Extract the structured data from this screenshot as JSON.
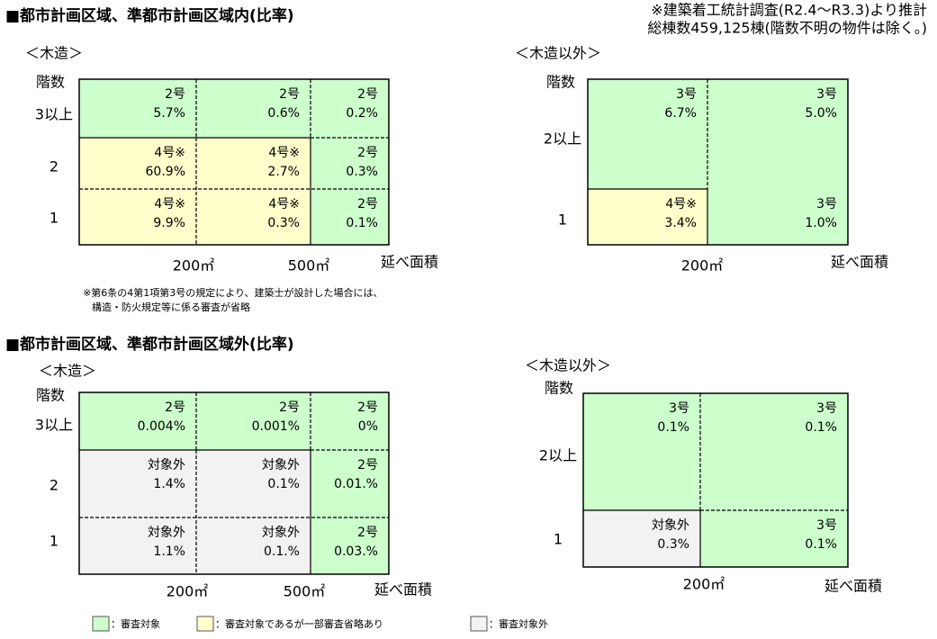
{
  "header": {
    "note": [
      "※建築着工統計調査(R2.4～R3.3)より推計",
      "総棟数459,125棟(階数不明の物件は除く。)"
    ]
  },
  "sections": [
    {
      "title": "■都市計画区域、準都市計画区域内(比率)",
      "panels": [
        {
          "label": "＜木造＞",
          "y_axis_label": "階数",
          "row_labels": [
            "3以上",
            "2",
            "1"
          ],
          "x_labels": [
            "200㎡",
            "500㎡"
          ],
          "x_axis_label": "延べ面積",
          "cells": [
            {
              "code": "2号",
              "ratio": "5.7%",
              "color": "#ccffcc"
            },
            {
              "code": "2号",
              "ratio": "0.6%",
              "color": "#ccffcc"
            },
            {
              "code": "2号",
              "ratio": "0.2%",
              "color": "#ccffcc"
            },
            {
              "code": "4号※",
              "ratio": "60.9%",
              "color": "#ffffcc"
            },
            {
              "code": "4号※",
              "ratio": "2.7%",
              "color": "#ffffcc"
            },
            {
              "code": "2号",
              "ratio": "0.3%",
              "color": "#ccffcc"
            },
            {
              "code": "4号※",
              "ratio": "9.9%",
              "color": "#ffffcc"
            },
            {
              "code": "4号※",
              "ratio": "0.3%",
              "color": "#ffffcc"
            },
            {
              "code": "2号",
              "ratio": "0.1%",
              "color": "#ccffcc"
            }
          ]
        },
        {
          "label": "＜木造以外＞",
          "y_axis_label": "階数",
          "row_labels": [
            "2以上",
            "1"
          ],
          "x_labels": [
            "200㎡"
          ],
          "x_axis_label": "延べ面積",
          "cells": [
            {
              "code": "3号",
              "ratio": "6.7%",
              "color": "#ccffcc"
            },
            {
              "code": "3号",
              "ratio": "5.0%",
              "color": "#ccffcc"
            },
            {
              "code": "4号※",
              "ratio": "3.4%",
              "color": "#ffffcc"
            },
            {
              "code": "3号",
              "ratio": "1.0%",
              "color": "#ccffcc"
            }
          ]
        }
      ],
      "footnote": [
        "※第6条の4第1項第3号の規定により、建築士が設計した場合には、",
        "構造・防火規定等に係る審査が省略"
      ]
    },
    {
      "title": "■都市計画区域、準都市計画区域外(比率)",
      "panels": [
        {
          "label": "＜木造＞",
          "y_axis_label": "階数",
          "row_labels": [
            "3以上",
            "2",
            "1"
          ],
          "x_labels": [
            "200㎡",
            "500㎡"
          ],
          "x_axis_label": "延べ面積",
          "cells": [
            {
              "code": "2号",
              "ratio": "0.004%",
              "color": "#ccffcc"
            },
            {
              "code": "2号",
              "ratio": "0.001%",
              "color": "#ccffcc"
            },
            {
              "code": "2号",
              "ratio": "0%",
              "color": "#ccffcc"
            },
            {
              "code": "対象外",
              "ratio": "1.4%",
              "color": "#f2f2f2"
            },
            {
              "code": "対象外",
              "ratio": "0.1%",
              "color": "#f2f2f2"
            },
            {
              "code": "2号",
              "ratio": "0.01.%",
              "color": "#ccffcc"
            },
            {
              "code": "対象外",
              "ratio": "1.1%",
              "color": "#f2f2f2"
            },
            {
              "code": "対象外",
              "ratio": "0.1.%",
              "color": "#f2f2f2"
            },
            {
              "code": "2号",
              "ratio": "0.03.%",
              "color": "#ccffcc"
            }
          ]
        },
        {
          "label": "＜木造以外＞",
          "y_axis_label": "階数",
          "row_labels": [
            "2以上",
            "1"
          ],
          "x_labels": [
            "200㎡"
          ],
          "x_axis_label": "延べ面積",
          "cells": [
            {
              "code": "3号",
              "ratio": "0.1%",
              "color": "#ccffcc"
            },
            {
              "code": "3号",
              "ratio": "0.1%",
              "color": "#ccffcc"
            },
            {
              "code": "対象外",
              "ratio": "0.3%",
              "color": "#f2f2f2"
            },
            {
              "code": "3号",
              "ratio": "0.1%",
              "color": "#ccffcc"
            }
          ]
        }
      ]
    }
  ],
  "legend": [
    {
      "color": "#ccffcc",
      "label": "：審査対象"
    },
    {
      "color": "#ffffcc",
      "label": "：審査対象であるが一部審査省略あり"
    },
    {
      "color": "#f2f2f2",
      "label": "：審査対象外"
    }
  ]
}
